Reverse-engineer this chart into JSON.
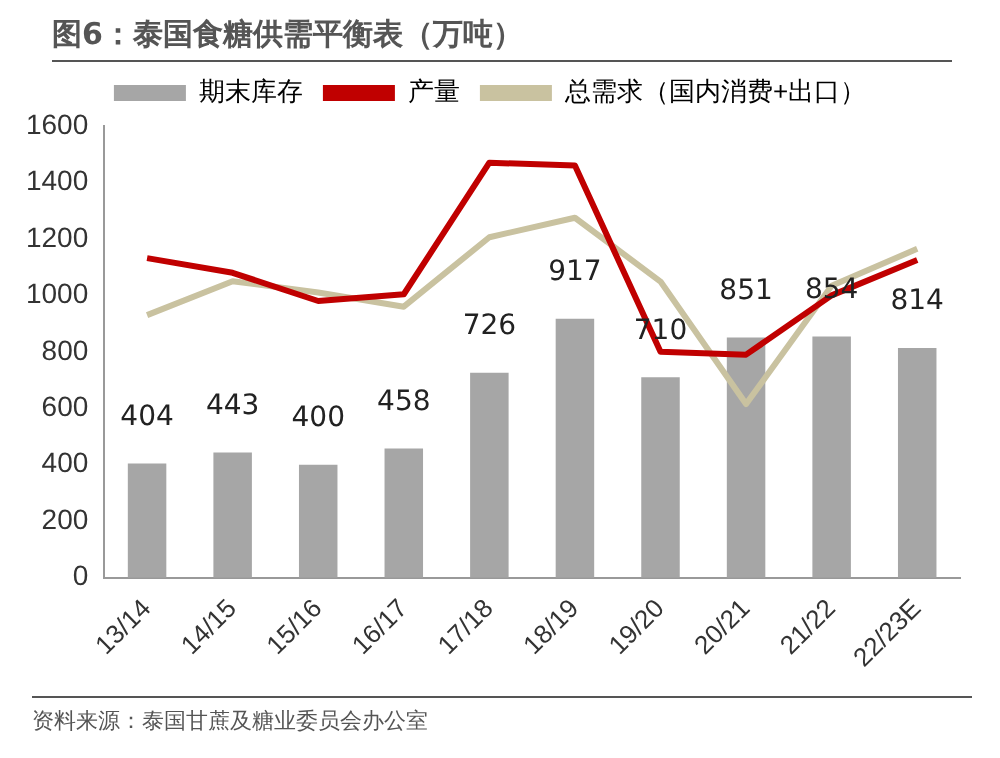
{
  "chart_data": {
    "type": "bar",
    "title": "图6：泰国食糖供需平衡表（万吨）",
    "annotations": [
      "资料来源：泰国甘蔗及糖业委员会办公室"
    ],
    "categories": [
      "13/14",
      "14/15",
      "15/16",
      "16/17",
      "17/18",
      "18/19",
      "19/20",
      "20/21",
      "21/22",
      "22/23E"
    ],
    "series": [
      {
        "name": "期末库存",
        "color": "#a6a6a6",
        "values": [
          404,
          443,
          400,
          458,
          726,
          917,
          710,
          851,
          854,
          814
        ],
        "value_labels": [
          "404",
          "443",
          "400",
          "458",
          "726",
          "917",
          "710",
          "851",
          "854",
          "814"
        ]
      },
      {
        "name": "产量",
        "type": "line",
        "color": "#c00000",
        "values": [
          1132,
          1080,
          980,
          1004,
          1470,
          1460,
          800,
          790,
          1000,
          1125
        ]
      },
      {
        "name": "总需求（国内消费+出口）",
        "type": "line",
        "color": "#c9c2a0",
        "values": [
          930,
          1050,
          1010,
          960,
          1206,
          1275,
          1049,
          615,
          1034,
          1165
        ]
      }
    ],
    "ylim": [
      0,
      1600
    ],
    "yticks": [
      0,
      200,
      400,
      600,
      800,
      1000,
      1200,
      1400,
      1600
    ],
    "grid": false,
    "legend": "top"
  }
}
